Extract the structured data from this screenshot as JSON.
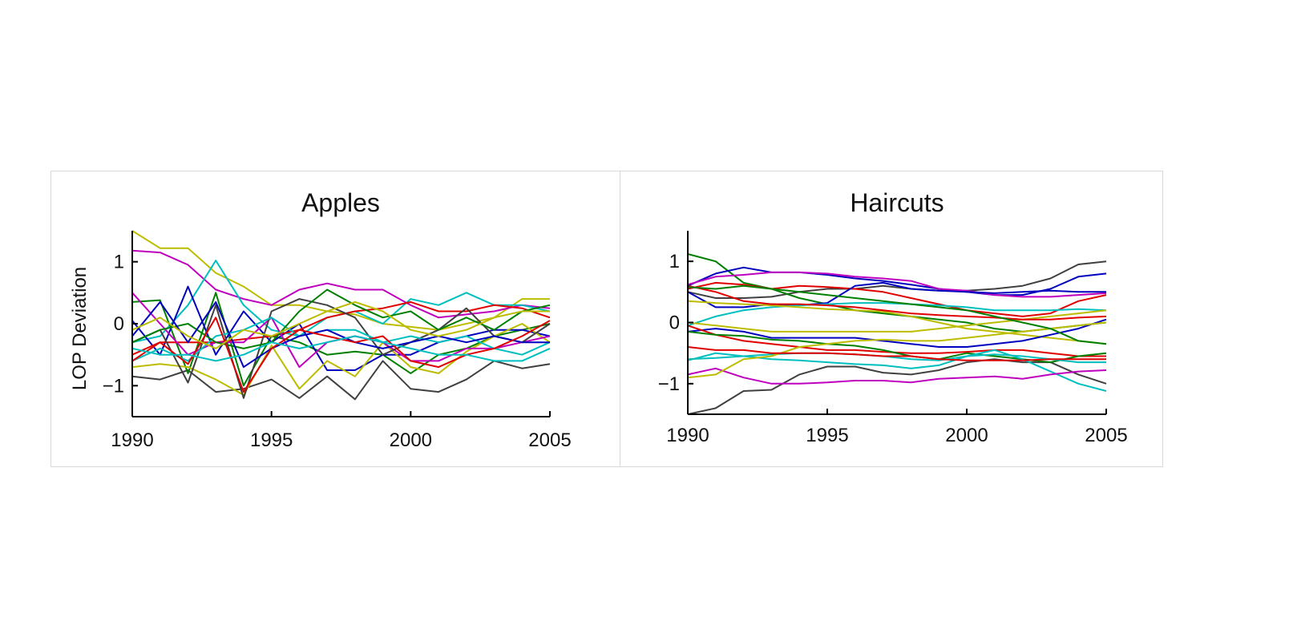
{
  "chart_data": [
    {
      "type": "line",
      "title": "Apples",
      "xlabel": "",
      "ylabel": "LOP Deviation",
      "xlim": [
        1990,
        2005
      ],
      "ylim": [
        -1.5,
        1.5
      ],
      "xticks": [
        1990,
        1995,
        2000,
        2005
      ],
      "yticks": [
        -1,
        0,
        1
      ],
      "ytick_labels": [
        "−1",
        "0",
        "1"
      ],
      "grid": false,
      "legend": "none",
      "x": [
        1990,
        1991,
        1992,
        1993,
        1994,
        1995,
        1996,
        1997,
        1998,
        1999,
        2000,
        2001,
        2002,
        2003,
        2004,
        2005
      ],
      "series": [
        {
          "color": "#bcbc00",
          "values": [
            1.5,
            1.22,
            1.22,
            0.82,
            0.6,
            0.3,
            0.3,
            0.2,
            0.15,
            0.0,
            -0.05,
            -0.1,
            0.0,
            0.1,
            0.4,
            0.4
          ]
        },
        {
          "color": "#bf00bf",
          "values": [
            1.18,
            1.15,
            0.95,
            0.55,
            0.4,
            0.3,
            0.55,
            0.65,
            0.55,
            0.55,
            0.3,
            0.1,
            0.15,
            0.2,
            0.3,
            0.25
          ]
        },
        {
          "color": "#00bfbf",
          "values": [
            -0.3,
            -0.2,
            0.3,
            1.02,
            0.3,
            -0.1,
            -0.2,
            0.1,
            0.2,
            0.0,
            0.4,
            0.3,
            0.5,
            0.3,
            0.3,
            0.2
          ]
        },
        {
          "color": "#404040",
          "values": [
            -0.85,
            -0.9,
            -0.75,
            -1.1,
            -1.05,
            -0.9,
            -1.2,
            -0.85,
            -1.22,
            -0.6,
            -1.05,
            -1.1,
            -0.9,
            -0.6,
            -0.72,
            -0.65
          ]
        },
        {
          "color": "#008000",
          "values": [
            0.35,
            0.38,
            -0.8,
            0.5,
            -1.0,
            -0.2,
            -0.3,
            -0.5,
            -0.45,
            -0.5,
            -0.8,
            -0.5,
            -0.4,
            -0.2,
            -0.1,
            0.0
          ]
        },
        {
          "color": "#0000bf",
          "values": [
            0.05,
            -0.5,
            0.6,
            -0.5,
            0.2,
            -0.3,
            0.0,
            -0.75,
            -0.75,
            -0.5,
            -0.5,
            -0.3,
            -0.2,
            -0.1,
            -0.1,
            -0.2
          ]
        },
        {
          "color": "#e00000",
          "values": [
            -0.5,
            -0.3,
            -0.3,
            -0.3,
            -0.25,
            -0.2,
            -0.1,
            0.1,
            0.2,
            0.25,
            0.35,
            0.2,
            0.2,
            0.3,
            0.25,
            0.1
          ]
        },
        {
          "color": "#bcbc00",
          "values": [
            -0.7,
            -0.65,
            -0.7,
            -0.9,
            -1.15,
            -0.35,
            -1.05,
            -0.6,
            -0.85,
            -0.3,
            -0.7,
            -0.8,
            -0.45,
            -0.2,
            0.0,
            -0.3
          ]
        },
        {
          "color": "#bf00bf",
          "values": [
            0.5,
            0.0,
            -0.5,
            -0.3,
            -0.3,
            0.1,
            -0.7,
            -0.3,
            -0.2,
            -0.3,
            -0.6,
            -0.6,
            -0.4,
            -0.4,
            -0.3,
            -0.2
          ]
        },
        {
          "color": "#404040",
          "values": [
            -0.3,
            -0.1,
            -0.95,
            0.3,
            -1.2,
            0.2,
            0.4,
            0.3,
            0.1,
            -0.5,
            -0.3,
            -0.1,
            0.25,
            -0.2,
            -0.3,
            0.0
          ]
        },
        {
          "color": "#00bfbf",
          "values": [
            -0.6,
            -0.4,
            -0.6,
            -0.2,
            -0.1,
            0.1,
            -0.2,
            -0.1,
            -0.1,
            -0.3,
            -0.2,
            -0.3,
            -0.2,
            -0.4,
            -0.5,
            -0.3
          ]
        },
        {
          "color": "#008000",
          "values": [
            -0.3,
            -0.1,
            0.0,
            -0.3,
            -0.4,
            -0.3,
            0.2,
            0.55,
            0.3,
            0.1,
            0.2,
            -0.1,
            0.1,
            -0.1,
            0.2,
            0.3
          ]
        },
        {
          "color": "#0000bf",
          "values": [
            -0.2,
            0.35,
            -0.3,
            0.35,
            -0.7,
            -0.4,
            -0.2,
            -0.1,
            -0.3,
            -0.4,
            -0.3,
            -0.2,
            -0.3,
            -0.2,
            -0.3,
            -0.3
          ]
        },
        {
          "color": "#e00000",
          "values": [
            -0.6,
            -0.3,
            -0.65,
            0.1,
            -1.1,
            -0.4,
            -0.1,
            -0.2,
            -0.3,
            -0.2,
            -0.6,
            -0.7,
            -0.5,
            -0.4,
            -0.2,
            0.05
          ]
        },
        {
          "color": "#bcbc00",
          "values": [
            -0.1,
            0.1,
            -0.2,
            -0.4,
            -0.1,
            -0.2,
            0.0,
            0.2,
            0.35,
            0.2,
            -0.1,
            -0.2,
            -0.1,
            0.1,
            0.2,
            0.2
          ]
        },
        {
          "color": "#00bfbf",
          "values": [
            -0.4,
            -0.5,
            -0.5,
            -0.6,
            -0.5,
            -0.3,
            -0.4,
            -0.3,
            -0.2,
            -0.3,
            -0.4,
            -0.5,
            -0.5,
            -0.6,
            -0.6,
            -0.4
          ]
        }
      ]
    },
    {
      "type": "line",
      "title": "Haircuts",
      "xlabel": "",
      "ylabel": "",
      "xlim": [
        1990,
        2005
      ],
      "ylim": [
        -1.5,
        1.5
      ],
      "xticks": [
        1990,
        1995,
        2000,
        2005
      ],
      "yticks": [
        -1,
        0,
        1
      ],
      "ytick_labels": [
        "−1",
        "0",
        "1"
      ],
      "grid": false,
      "legend": "none",
      "x": [
        1990,
        1991,
        1992,
        1993,
        1994,
        1995,
        1996,
        1997,
        1998,
        1999,
        2000,
        2001,
        2002,
        2003,
        2004,
        2005
      ],
      "series": [
        {
          "color": "#404040",
          "values": [
            -1.5,
            -1.4,
            -1.12,
            -1.1,
            -0.85,
            -0.72,
            -0.72,
            -0.82,
            -0.85,
            -0.78,
            -0.65,
            -0.6,
            -0.65,
            -0.65,
            -0.85,
            -1.0
          ]
        },
        {
          "color": "#404040",
          "values": [
            0.5,
            0.4,
            0.4,
            0.42,
            0.5,
            0.55,
            0.55,
            0.6,
            0.55,
            0.52,
            0.52,
            0.55,
            0.6,
            0.72,
            0.95,
            1.0
          ]
        },
        {
          "color": "#008000",
          "values": [
            1.12,
            1.0,
            0.65,
            0.55,
            0.4,
            0.3,
            0.2,
            0.15,
            0.1,
            0.05,
            0.0,
            -0.1,
            -0.15,
            -0.1,
            -0.05,
            0.0
          ]
        },
        {
          "color": "#0000bf",
          "values": [
            0.6,
            0.8,
            0.9,
            0.82,
            0.82,
            0.78,
            0.72,
            0.68,
            0.62,
            0.55,
            0.5,
            0.45,
            0.45,
            0.55,
            0.75,
            0.8
          ]
        },
        {
          "color": "#bf00bf",
          "values": [
            0.62,
            0.75,
            0.78,
            0.82,
            0.82,
            0.8,
            0.75,
            0.72,
            0.68,
            0.55,
            0.52,
            0.45,
            0.42,
            0.42,
            0.45,
            0.48
          ]
        },
        {
          "color": "#e00000",
          "values": [
            0.55,
            0.65,
            0.62,
            0.55,
            0.6,
            0.58,
            0.55,
            0.5,
            0.4,
            0.3,
            0.2,
            0.15,
            0.1,
            0.15,
            0.35,
            0.45
          ]
        },
        {
          "color": "#0000bf",
          "values": [
            0.5,
            0.25,
            0.25,
            0.3,
            0.28,
            0.32,
            0.6,
            0.65,
            0.55,
            0.52,
            0.5,
            0.48,
            0.5,
            0.52,
            0.5,
            0.5
          ]
        },
        {
          "color": "#00bfbf",
          "values": [
            -0.05,
            0.1,
            0.2,
            0.25,
            0.28,
            0.3,
            0.32,
            0.32,
            0.3,
            0.28,
            0.25,
            0.2,
            0.2,
            0.2,
            0.22,
            0.2
          ]
        },
        {
          "color": "#bcbc00",
          "values": [
            0.0,
            -0.05,
            -0.1,
            -0.15,
            -0.15,
            -0.15,
            -0.15,
            -0.15,
            -0.15,
            -0.1,
            -0.05,
            0.0,
            0.05,
            0.1,
            0.15,
            0.2
          ]
        },
        {
          "color": "#bcbc00",
          "values": [
            0.35,
            0.32,
            0.3,
            0.28,
            0.25,
            0.22,
            0.2,
            0.18,
            0.1,
            0.0,
            -0.1,
            -0.15,
            -0.2,
            -0.25,
            -0.3,
            -0.35
          ]
        },
        {
          "color": "#0000bf",
          "values": [
            -0.15,
            -0.1,
            -0.15,
            -0.25,
            -0.25,
            -0.25,
            -0.25,
            -0.3,
            -0.35,
            -0.4,
            -0.4,
            -0.35,
            -0.3,
            -0.2,
            -0.1,
            0.05
          ]
        },
        {
          "color": "#e00000",
          "values": [
            -0.05,
            -0.2,
            -0.3,
            -0.35,
            -0.4,
            -0.45,
            -0.45,
            -0.48,
            -0.5,
            -0.5,
            -0.48,
            -0.45,
            -0.45,
            -0.5,
            -0.55,
            -0.55
          ]
        },
        {
          "color": "#008000",
          "values": [
            -0.15,
            -0.2,
            -0.22,
            -0.28,
            -0.3,
            -0.35,
            -0.38,
            -0.45,
            -0.55,
            -0.6,
            -0.5,
            -0.55,
            -0.6,
            -0.65,
            -0.55,
            -0.5
          ]
        },
        {
          "color": "#00bfbf",
          "values": [
            -0.6,
            -0.58,
            -0.55,
            -0.52,
            -0.5,
            -0.5,
            -0.52,
            -0.55,
            -0.6,
            -0.62,
            -0.55,
            -0.52,
            -0.55,
            -0.6,
            -0.65,
            -0.65
          ]
        },
        {
          "color": "#00bfbf",
          "values": [
            -0.62,
            -0.5,
            -0.55,
            -0.6,
            -0.62,
            -0.65,
            -0.68,
            -0.7,
            -0.75,
            -0.7,
            -0.55,
            -0.45,
            -0.6,
            -0.8,
            -1.0,
            -1.12
          ]
        },
        {
          "color": "#bf00bf",
          "values": [
            -0.85,
            -0.75,
            -0.9,
            -1.0,
            -1.0,
            -0.98,
            -0.95,
            -0.95,
            -0.98,
            -0.92,
            -0.9,
            -0.88,
            -0.92,
            -0.85,
            -0.8,
            -0.78
          ]
        },
        {
          "color": "#bcbc00",
          "values": [
            -0.9,
            -0.85,
            -0.6,
            -0.55,
            -0.4,
            -0.35,
            -0.3,
            -0.28,
            -0.3,
            -0.3,
            -0.25,
            -0.2,
            -0.15,
            -0.1,
            -0.05,
            0.0
          ]
        },
        {
          "color": "#e00000",
          "values": [
            0.6,
            0.5,
            0.35,
            0.3,
            0.3,
            0.28,
            0.25,
            0.2,
            0.15,
            0.12,
            0.1,
            0.08,
            0.05,
            0.05,
            0.08,
            0.1
          ]
        },
        {
          "color": "#008000",
          "values": [
            0.58,
            0.55,
            0.6,
            0.55,
            0.5,
            0.45,
            0.4,
            0.35,
            0.3,
            0.25,
            0.2,
            0.1,
            0.0,
            -0.1,
            -0.3,
            -0.35
          ]
        },
        {
          "color": "#e00000",
          "values": [
            -0.4,
            -0.45,
            -0.45,
            -0.5,
            -0.5,
            -0.5,
            -0.52,
            -0.55,
            -0.55,
            -0.6,
            -0.62,
            -0.62,
            -0.62,
            -0.6,
            -0.6,
            -0.6
          ]
        }
      ]
    }
  ]
}
